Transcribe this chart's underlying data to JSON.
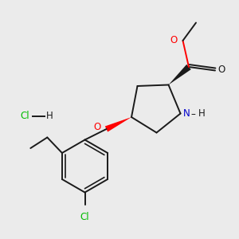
{
  "bg_color": "#ebebeb",
  "bond_color": "#1a1a1a",
  "O_color": "#ff0000",
  "N_color": "#0000cc",
  "Cl_color": "#00bb00",
  "figsize": [
    3.0,
    3.0
  ],
  "dpi": 100,
  "xlim": [
    0,
    10
  ],
  "ylim": [
    0,
    10
  ],
  "lw": 1.4,
  "fs": 8.5
}
